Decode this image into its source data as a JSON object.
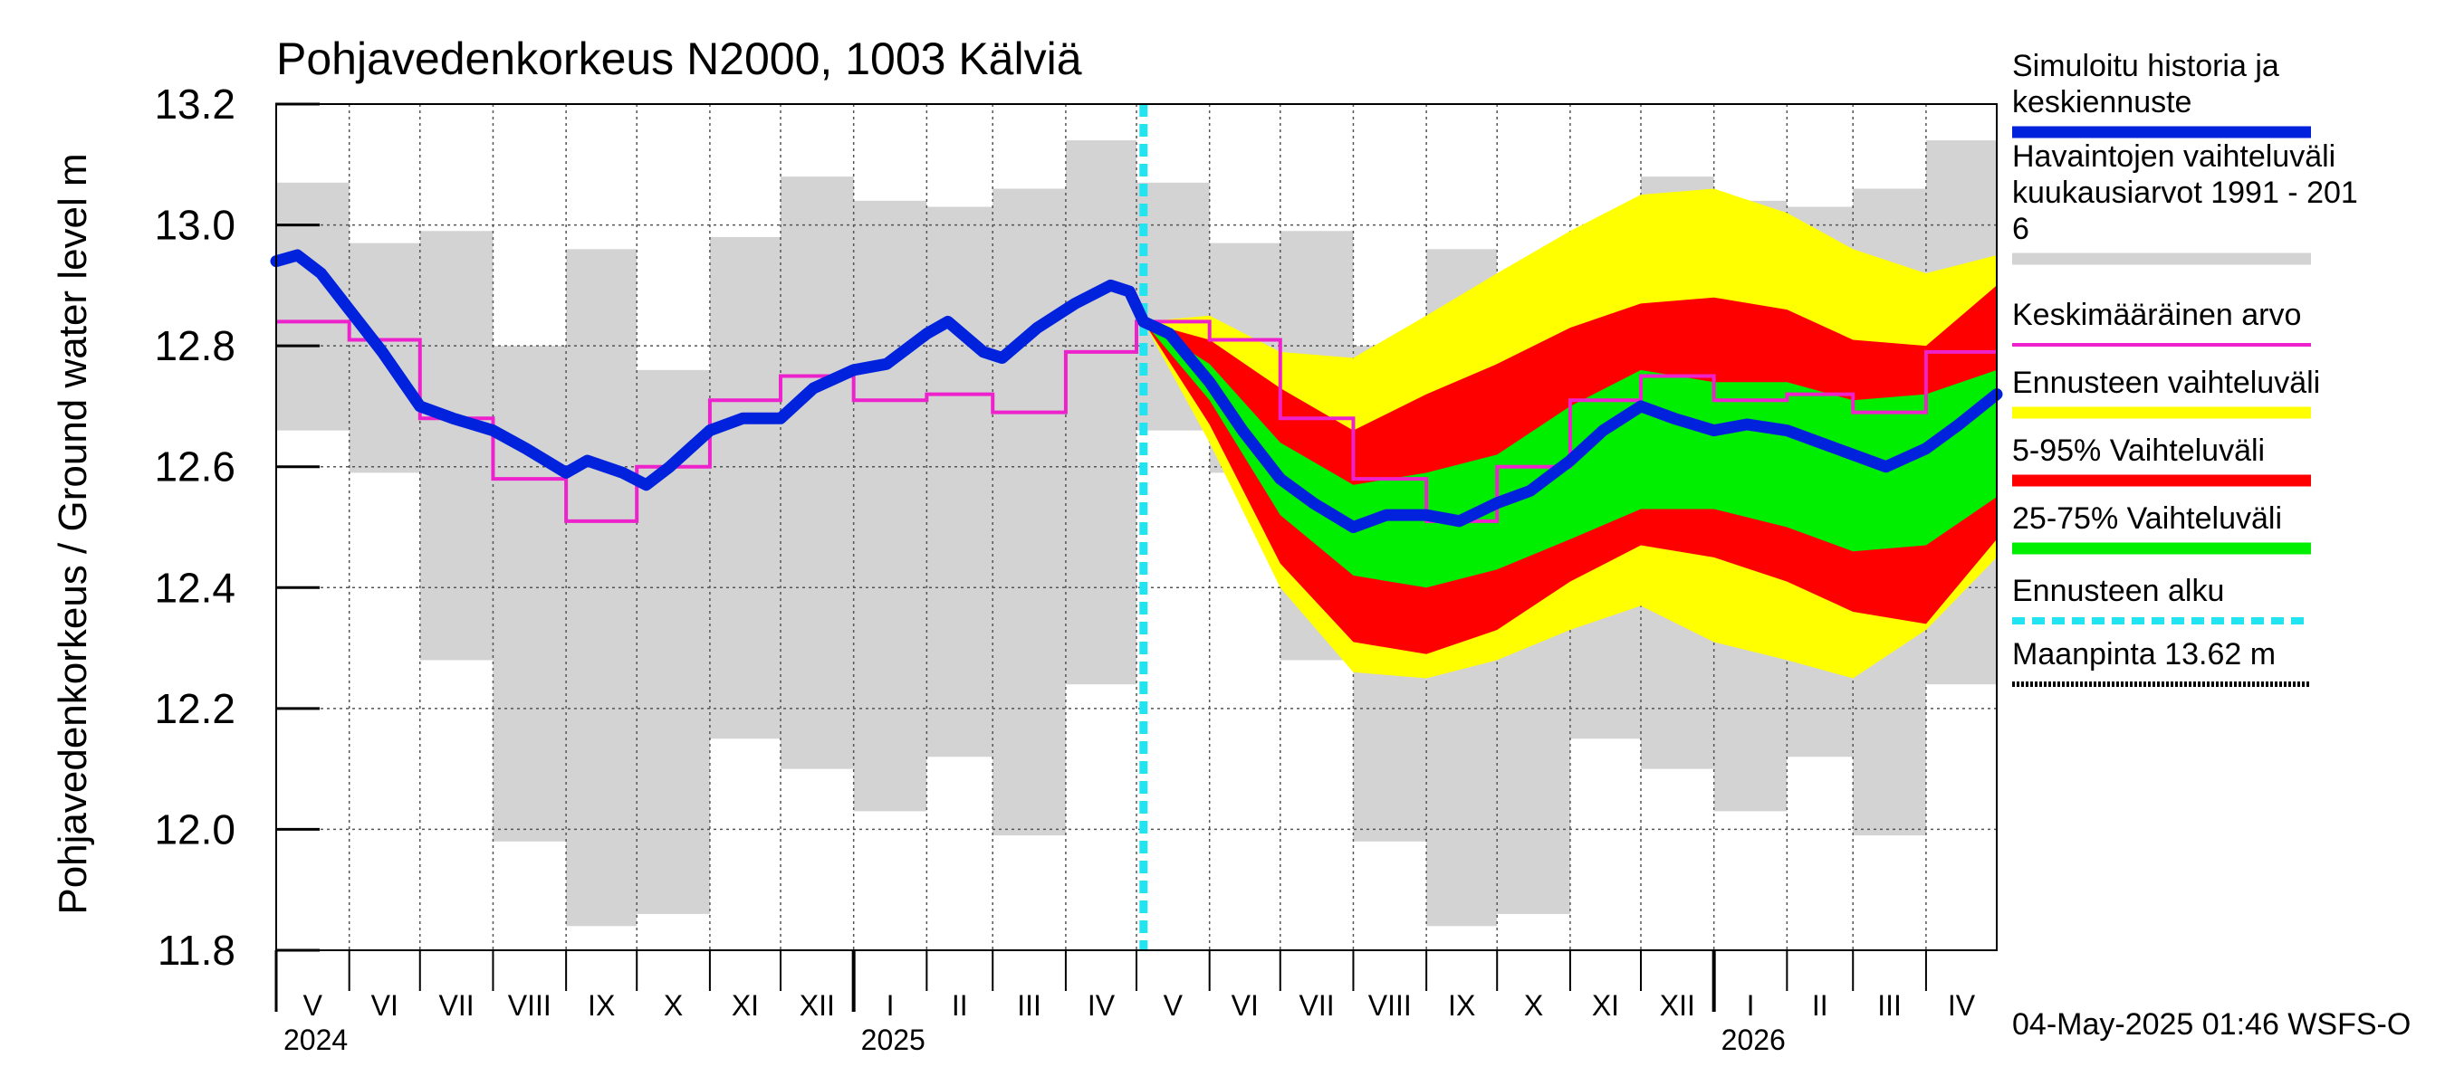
{
  "chart_data": {
    "type": "line",
    "title": "Pohjavedenkorkeus N2000, 1003 Kälviä",
    "ylabel": "Pohjavedenkorkeus / Ground water level   m",
    "ylim": [
      11.8,
      13.2
    ],
    "yticks": [
      "13.2",
      "13.0",
      "12.8",
      "12.6",
      "12.4",
      "12.2",
      "12.0",
      "11.8"
    ],
    "ytick_values": [
      13.2,
      13.0,
      12.8,
      12.6,
      12.4,
      12.2,
      12.0,
      11.8
    ],
    "grid": true,
    "months": [
      "V",
      "VI",
      "VII",
      "VIII",
      "IX",
      "X",
      "XI",
      "XII",
      "I",
      "II",
      "III",
      "IV",
      "V",
      "VI",
      "VII",
      "VIII",
      "IX",
      "X",
      "XI",
      "XII",
      "I",
      "II",
      "III",
      "IV"
    ],
    "years": [
      "2024",
      "2025",
      "2026"
    ],
    "forecast_start": "2025-05-04",
    "footer": "04-May-2025 01:46 WSFS-O",
    "legend": {
      "placement": "right",
      "items": [
        {
          "label": "Simuloitu historia ja\nkeskiennuste",
          "color": "#0022dd",
          "style": "thick"
        },
        {
          "label": "Havaintojen vaihteluväli\n kuukausiarvot 1991 - 201\n6",
          "color": "#d3d3d3",
          "style": "thick"
        },
        {
          "label": "Keskimääräinen arvo",
          "color": "#ee22cc",
          "style": "line"
        },
        {
          "label": "Ennusteen vaihteluväli",
          "color": "#ffff00",
          "style": "thick"
        },
        {
          "label": "5-95% Vaihteluväli",
          "color": "#ff0000",
          "style": "thick"
        },
        {
          "label": "25-75% Vaihteluväli",
          "color": "#00ee00",
          "style": "thick"
        },
        {
          "label": "Ennusteen alku",
          "color": "#22e4f0",
          "style": "dash"
        },
        {
          "label": "Maanpinta 13.62 m",
          "color": "#000000",
          "style": "dots"
        }
      ]
    },
    "observed_range_monthly": [
      {
        "min": 12.66,
        "max": 13.07
      },
      {
        "min": 12.59,
        "max": 12.97
      },
      {
        "min": 12.28,
        "max": 12.99
      },
      {
        "min": 11.98,
        "max": 12.8
      },
      {
        "min": 11.84,
        "max": 12.96
      },
      {
        "min": 11.86,
        "max": 12.76
      },
      {
        "min": 12.15,
        "max": 12.98
      },
      {
        "min": 12.1,
        "max": 13.08
      },
      {
        "min": 12.03,
        "max": 13.04
      },
      {
        "min": 12.12,
        "max": 13.03
      },
      {
        "min": 11.99,
        "max": 13.06
      },
      {
        "min": 12.24,
        "max": 13.14
      },
      {
        "min": 12.66,
        "max": 13.07
      },
      {
        "min": 12.59,
        "max": 12.97
      },
      {
        "min": 12.28,
        "max": 12.99
      },
      {
        "min": 11.98,
        "max": 12.8
      },
      {
        "min": 11.84,
        "max": 12.96
      },
      {
        "min": 11.86,
        "max": 12.76
      },
      {
        "min": 12.15,
        "max": 12.98
      },
      {
        "min": 12.1,
        "max": 13.08
      },
      {
        "min": 12.03,
        "max": 13.04
      },
      {
        "min": 12.12,
        "max": 13.03
      },
      {
        "min": 11.99,
        "max": 13.06
      },
      {
        "min": 12.24,
        "max": 13.14
      }
    ],
    "monthly_mean": [
      12.84,
      12.81,
      12.68,
      12.58,
      12.51,
      12.6,
      12.71,
      12.75,
      12.71,
      12.72,
      12.69,
      12.79,
      12.84,
      12.81,
      12.68,
      12.58,
      12.51,
      12.6,
      12.71,
      12.75,
      12.71,
      12.72,
      12.69,
      12.79
    ],
    "simulated_history": [
      {
        "x": "2024-05-01",
        "y": 12.94
      },
      {
        "x": "2024-05-10",
        "y": 12.95
      },
      {
        "x": "2024-05-20",
        "y": 12.92
      },
      {
        "x": "2024-06-01",
        "y": 12.86
      },
      {
        "x": "2024-06-15",
        "y": 12.79
      },
      {
        "x": "2024-07-01",
        "y": 12.7
      },
      {
        "x": "2024-07-15",
        "y": 12.68
      },
      {
        "x": "2024-08-01",
        "y": 12.66
      },
      {
        "x": "2024-08-15",
        "y": 12.63
      },
      {
        "x": "2024-09-01",
        "y": 12.59
      },
      {
        "x": "2024-09-10",
        "y": 12.61
      },
      {
        "x": "2024-09-25",
        "y": 12.59
      },
      {
        "x": "2024-10-05",
        "y": 12.57
      },
      {
        "x": "2024-10-15",
        "y": 12.6
      },
      {
        "x": "2024-11-01",
        "y": 12.66
      },
      {
        "x": "2024-11-15",
        "y": 12.68
      },
      {
        "x": "2024-12-01",
        "y": 12.68
      },
      {
        "x": "2024-12-15",
        "y": 12.73
      },
      {
        "x": "2025-01-01",
        "y": 12.76
      },
      {
        "x": "2025-01-15",
        "y": 12.77
      },
      {
        "x": "2025-02-01",
        "y": 12.82
      },
      {
        "x": "2025-02-10",
        "y": 12.84
      },
      {
        "x": "2025-02-25",
        "y": 12.79
      },
      {
        "x": "2025-03-05",
        "y": 12.78
      },
      {
        "x": "2025-03-20",
        "y": 12.83
      },
      {
        "x": "2025-04-05",
        "y": 12.87
      },
      {
        "x": "2025-04-20",
        "y": 12.9
      },
      {
        "x": "2025-04-28",
        "y": 12.89
      },
      {
        "x": "2025-05-04",
        "y": 12.84
      }
    ],
    "forecast_median": [
      {
        "x": "2025-05-04",
        "y": 12.84
      },
      {
        "x": "2025-05-15",
        "y": 12.82
      },
      {
        "x": "2025-06-01",
        "y": 12.74
      },
      {
        "x": "2025-06-15",
        "y": 12.66
      },
      {
        "x": "2025-07-01",
        "y": 12.58
      },
      {
        "x": "2025-07-15",
        "y": 12.54
      },
      {
        "x": "2025-08-01",
        "y": 12.5
      },
      {
        "x": "2025-08-15",
        "y": 12.52
      },
      {
        "x": "2025-09-01",
        "y": 12.52
      },
      {
        "x": "2025-09-15",
        "y": 12.51
      },
      {
        "x": "2025-10-01",
        "y": 12.54
      },
      {
        "x": "2025-10-15",
        "y": 12.56
      },
      {
        "x": "2025-11-01",
        "y": 12.61
      },
      {
        "x": "2025-11-15",
        "y": 12.66
      },
      {
        "x": "2025-12-01",
        "y": 12.7
      },
      {
        "x": "2025-12-15",
        "y": 12.68
      },
      {
        "x": "2026-01-01",
        "y": 12.66
      },
      {
        "x": "2026-01-15",
        "y": 12.67
      },
      {
        "x": "2026-02-01",
        "y": 12.66
      },
      {
        "x": "2026-02-15",
        "y": 12.64
      },
      {
        "x": "2026-03-01",
        "y": 12.62
      },
      {
        "x": "2026-03-15",
        "y": 12.6
      },
      {
        "x": "2026-04-01",
        "y": 12.63
      },
      {
        "x": "2026-04-15",
        "y": 12.67
      },
      {
        "x": "2026-05-01",
        "y": 12.72
      }
    ],
    "forecast_p25_75": [
      {
        "x": "2025-05-04",
        "lo": 12.84,
        "hi": 12.84
      },
      {
        "x": "2025-06-01",
        "lo": 12.71,
        "hi": 12.77
      },
      {
        "x": "2025-07-01",
        "lo": 12.52,
        "hi": 12.64
      },
      {
        "x": "2025-08-01",
        "lo": 12.42,
        "hi": 12.57
      },
      {
        "x": "2025-09-01",
        "lo": 12.4,
        "hi": 12.59
      },
      {
        "x": "2025-10-01",
        "lo": 12.43,
        "hi": 12.62
      },
      {
        "x": "2025-11-01",
        "lo": 12.48,
        "hi": 12.7
      },
      {
        "x": "2025-12-01",
        "lo": 12.53,
        "hi": 12.76
      },
      {
        "x": "2026-01-01",
        "lo": 12.53,
        "hi": 12.74
      },
      {
        "x": "2026-02-01",
        "lo": 12.5,
        "hi": 12.74
      },
      {
        "x": "2026-03-01",
        "lo": 12.46,
        "hi": 12.71
      },
      {
        "x": "2026-04-01",
        "lo": 12.47,
        "hi": 12.72
      },
      {
        "x": "2026-05-01",
        "lo": 12.55,
        "hi": 12.76
      }
    ],
    "forecast_p05_95": [
      {
        "x": "2025-05-04",
        "lo": 12.84,
        "hi": 12.84
      },
      {
        "x": "2025-06-01",
        "lo": 12.67,
        "hi": 12.81
      },
      {
        "x": "2025-07-01",
        "lo": 12.44,
        "hi": 12.73
      },
      {
        "x": "2025-08-01",
        "lo": 12.31,
        "hi": 12.66
      },
      {
        "x": "2025-09-01",
        "lo": 12.29,
        "hi": 12.72
      },
      {
        "x": "2025-10-01",
        "lo": 12.33,
        "hi": 12.77
      },
      {
        "x": "2025-11-01",
        "lo": 12.41,
        "hi": 12.83
      },
      {
        "x": "2025-12-01",
        "lo": 12.47,
        "hi": 12.87
      },
      {
        "x": "2026-01-01",
        "lo": 12.45,
        "hi": 12.88
      },
      {
        "x": "2026-02-01",
        "lo": 12.41,
        "hi": 12.86
      },
      {
        "x": "2026-03-01",
        "lo": 12.36,
        "hi": 12.81
      },
      {
        "x": "2026-04-01",
        "lo": 12.34,
        "hi": 12.8
      },
      {
        "x": "2026-05-01",
        "lo": 12.48,
        "hi": 12.9
      }
    ],
    "forecast_full_range": [
      {
        "x": "2025-05-04",
        "lo": 12.84,
        "hi": 12.84
      },
      {
        "x": "2025-06-01",
        "lo": 12.64,
        "hi": 12.85
      },
      {
        "x": "2025-07-01",
        "lo": 12.4,
        "hi": 12.79
      },
      {
        "x": "2025-08-01",
        "lo": 12.26,
        "hi": 12.78
      },
      {
        "x": "2025-09-01",
        "lo": 12.25,
        "hi": 12.85
      },
      {
        "x": "2025-10-01",
        "lo": 12.28,
        "hi": 12.92
      },
      {
        "x": "2025-11-01",
        "lo": 12.33,
        "hi": 12.99
      },
      {
        "x": "2025-12-01",
        "lo": 12.37,
        "hi": 13.05
      },
      {
        "x": "2026-01-01",
        "lo": 12.31,
        "hi": 13.06
      },
      {
        "x": "2026-02-01",
        "lo": 12.28,
        "hi": 13.02
      },
      {
        "x": "2026-03-01",
        "lo": 12.25,
        "hi": 12.96
      },
      {
        "x": "2026-04-01",
        "lo": 12.33,
        "hi": 12.92
      },
      {
        "x": "2026-05-01",
        "lo": 12.45,
        "hi": 12.95
      }
    ]
  }
}
